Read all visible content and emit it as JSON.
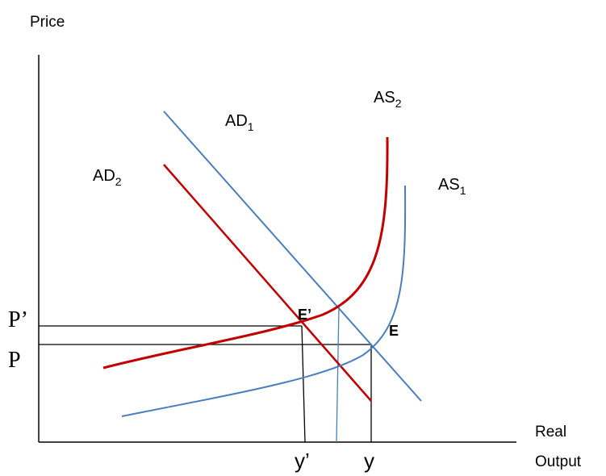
{
  "labels": {
    "y_axis": "Price",
    "x_axis_line1": "Real",
    "x_axis_line2": "Output",
    "ad1": "AD",
    "ad1_sub": "1",
    "ad2": "AD",
    "ad2_sub": "2",
    "as1": "AS",
    "as1_sub": "1",
    "as2": "AS",
    "as2_sub": "2",
    "p_prime": "P’",
    "p": "P",
    "e_prime": "E’",
    "e": "E",
    "y_prime": "y’",
    "y": "y"
  },
  "colors": {
    "axis": "#000000",
    "blue_curve": "#4a7ebb",
    "red_curve": "#c00000",
    "guide": "#000000",
    "text": "#000000"
  }
}
